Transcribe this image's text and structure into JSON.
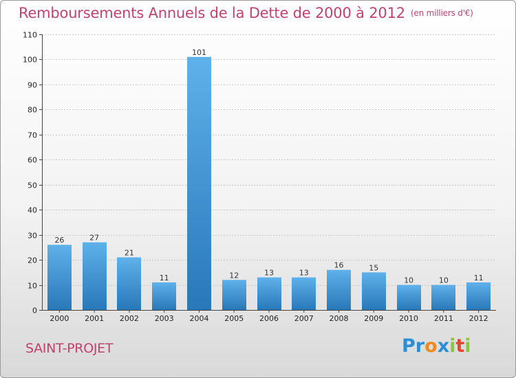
{
  "title": "Remboursements Annuels de la Dette de 2000 à 2012",
  "unit_label": "(en milliers d'€)",
  "commune": "SAINT-PROJET",
  "logo": {
    "text": "Proxiti",
    "letters": [
      {
        "ch": "P",
        "color": "#2a8fd6"
      },
      {
        "ch": "r",
        "color": "#2a8fd6"
      },
      {
        "ch": "o",
        "color": "#f08a1c"
      },
      {
        "ch": "x",
        "color": "#2a8fd6"
      },
      {
        "ch": "i",
        "color": "#8cc63e"
      },
      {
        "ch": "t",
        "color": "#e8432e"
      },
      {
        "ch": "i",
        "color": "#8cc63e"
      }
    ]
  },
  "colors": {
    "title": "#c0436f",
    "bar_top": "#5eb1ea",
    "bar_bottom": "#2878b8",
    "grid": "#c8c8c8"
  },
  "chart_data": {
    "type": "bar",
    "title": "Remboursements Annuels de la Dette de 2000 à 2012",
    "subtitle": "(en milliers d'€)",
    "xlabel": "",
    "ylabel": "",
    "categories": [
      "2000",
      "2001",
      "2002",
      "2003",
      "2004",
      "2005",
      "2006",
      "2007",
      "2008",
      "2009",
      "2010",
      "2011",
      "2012"
    ],
    "values": [
      26,
      27,
      21,
      11,
      101,
      12,
      13,
      13,
      16,
      15,
      10,
      10,
      11
    ],
    "ylim": [
      0,
      110
    ],
    "yticks": [
      0,
      10,
      20,
      30,
      40,
      50,
      60,
      70,
      80,
      90,
      100,
      110
    ],
    "grid": true,
    "legend": "none"
  }
}
